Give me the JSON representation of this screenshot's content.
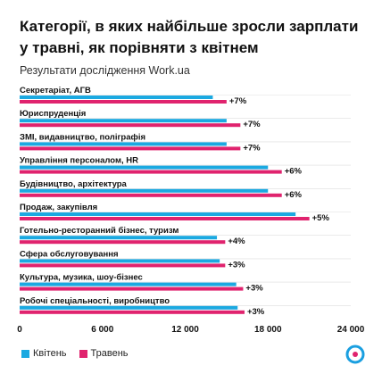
{
  "header": {
    "title": "Категорії, в яких найбільше зросли зарплати у травні, як порівняти з квітнем",
    "subtitle": "Результати дослідження Work.ua"
  },
  "colors": {
    "april": "#1ba9e1",
    "may": "#e0236e",
    "gridline": "#dddddd",
    "logo": "#1a9fe0"
  },
  "chart_data": {
    "type": "bar",
    "orientation": "horizontal",
    "categories": [
      "Секретаріат, АГВ",
      "Юриспруденція",
      "ЗМІ, видавництво, поліграфія",
      "Управління персоналом, HR",
      "Будівництво, архітектура",
      "Продаж, закупівля",
      "Готельно-ресторанний бізнес, туризм",
      "Сфера обслуговування",
      "Культура, музика, шоу-бізнес",
      "Робочі спеціальності, виробництво"
    ],
    "series": [
      {
        "name": "Квітень",
        "values": [
          14000,
          15000,
          15000,
          18000,
          18000,
          20000,
          14300,
          14500,
          15700,
          15800
        ]
      },
      {
        "name": "Травень",
        "values": [
          15000,
          16000,
          16000,
          19000,
          19000,
          21000,
          14900,
          14900,
          16200,
          16300
        ]
      }
    ],
    "data_labels": [
      "+7%",
      "+7%",
      "+7%",
      "+6%",
      "+6%",
      "+5%",
      "+4%",
      "+3%",
      "+3%",
      "+3%"
    ],
    "xlim": [
      0,
      24000
    ],
    "xticks": [
      0,
      6000,
      12000,
      18000,
      24000
    ],
    "xtick_labels": [
      "0",
      "6 000",
      "12 000",
      "18 000",
      "24 000"
    ],
    "legend_position": "bottom-left"
  }
}
